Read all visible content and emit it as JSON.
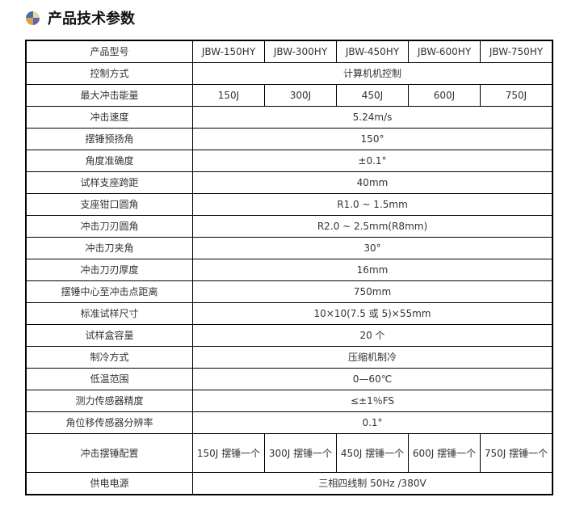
{
  "title": "产品技术参数",
  "icon": "colored-ball-icon",
  "models": [
    "JBW-150HY",
    "JBW-300HY",
    "JBW-450HY",
    "JBW-600HY",
    "JBW-750HY"
  ],
  "header_label": "产品型号",
  "rows": [
    {
      "label": "控制方式",
      "value": "计算机机控制"
    },
    {
      "label": "最大冲击能量",
      "values": [
        "150J",
        "300J",
        "450J",
        "600J",
        "750J"
      ]
    },
    {
      "label": "冲击速度",
      "value": "5.24m/s"
    },
    {
      "label": "摆锤预扬角",
      "value": "150°"
    },
    {
      "label": "角度准确度",
      "value": "±0.1°"
    },
    {
      "label": "试样支座跨距",
      "value": "40mm"
    },
    {
      "label": "支座钳口圆角",
      "value": "R1.0 ~ 1.5mm"
    },
    {
      "label": "冲击刀刃圆角",
      "value": "R2.0 ~ 2.5mm(R8mm)"
    },
    {
      "label": "冲击刀夹角",
      "value": "30°"
    },
    {
      "label": "冲击刀刃厚度",
      "value": "16mm"
    },
    {
      "label": "摆锤中心至冲击点距离",
      "value": "750mm"
    },
    {
      "label": "标准试样尺寸",
      "value": "10×10(7.5 或 5)×55mm"
    },
    {
      "label": "试样盒容量",
      "value": "20 个"
    },
    {
      "label": "制冷方式",
      "value": "压缩机制冷"
    },
    {
      "label": "低温范围",
      "value": "0—60℃"
    },
    {
      "label": "测力传感器精度",
      "value": "≤±1％FS"
    },
    {
      "label": "角位移传感器分辨率",
      "value": "0.1°"
    },
    {
      "label": "冲击摆锤配置",
      "values": [
        "150J 摆锤一个",
        "300J 摆锤一个",
        "450J 摆锤一个",
        "600J 摆锤一个",
        "750J 摆锤一个"
      ]
    },
    {
      "label": "供电电源",
      "value": "三相四线制 50Hz /380V"
    }
  ]
}
